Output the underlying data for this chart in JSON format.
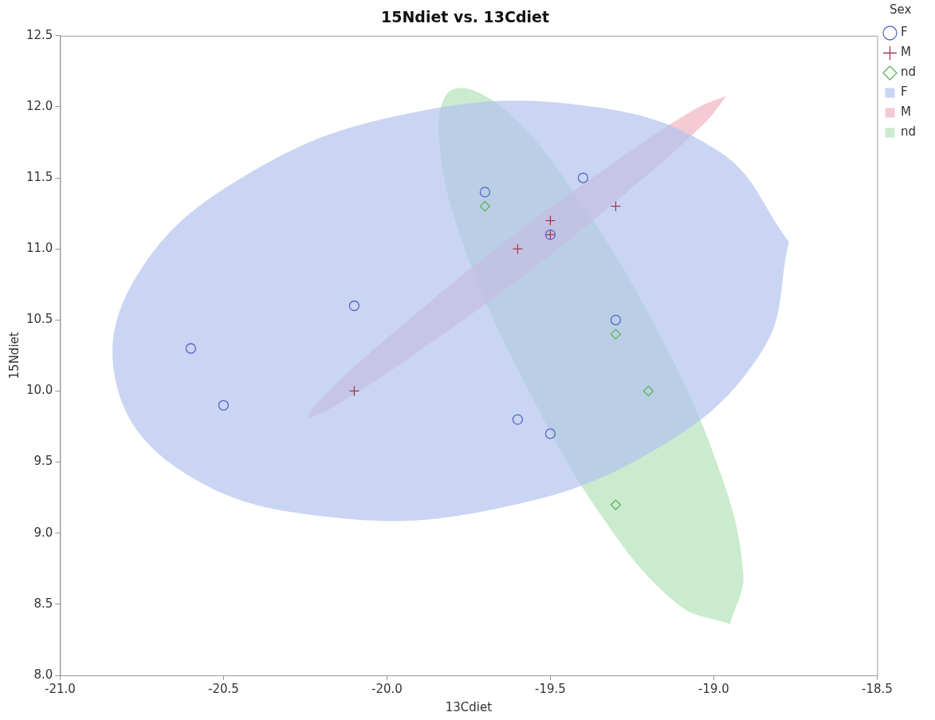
{
  "chart_data": {
    "type": "scatter",
    "title": "15Ndiet vs. 13Cdiet",
    "xlabel": "13Cdiet",
    "ylabel": "15Ndiet",
    "legend_title": "Sex",
    "legend": "top right",
    "xlim": [
      -21.0,
      -18.5
    ],
    "xticks": [
      {
        "value": -21,
        "label": "-21.0"
      },
      {
        "value": -20.5,
        "label": "-20.5"
      },
      {
        "value": -20,
        "label": "-20.0"
      },
      {
        "value": -19.5,
        "label": "-19.5"
      },
      {
        "value": -19,
        "label": "-19.0"
      },
      {
        "value": -18.5,
        "label": "-18.5"
      }
    ],
    "ylim": [
      8.0,
      12.5
    ],
    "yticks": [
      {
        "value": 8,
        "label": "8.0"
      },
      {
        "value": 8.5,
        "label": "8.5"
      },
      {
        "value": 9,
        "label": "9.0"
      },
      {
        "value": 9.5,
        "label": "9.5"
      },
      {
        "value": 10,
        "label": "10.0"
      },
      {
        "value": 10.5,
        "label": "10.5"
      },
      {
        "value": 11,
        "label": "11.0"
      },
      {
        "value": 11.5,
        "label": "11.5"
      },
      {
        "value": 12,
        "label": "12.0"
      },
      {
        "value": 12.5,
        "label": "12.5"
      }
    ],
    "series": [
      {
        "name": "F",
        "type": "scatter",
        "marker": "circle",
        "color": "#5566c4",
        "x": [
          -20.6,
          -20.5,
          -20.1,
          -19.7,
          -19.6,
          -19.5,
          -19.5,
          -19.4,
          -19.3
        ],
        "values": [
          10.3,
          9.9,
          10.6,
          11.4,
          9.8,
          9.7,
          11.1,
          11.5,
          10.5
        ]
      },
      {
        "name": "M",
        "type": "scatter",
        "marker": "cross",
        "color": "#a33a55",
        "x": [
          -20.1,
          -19.6,
          -19.5,
          -19.5,
          -19.3
        ],
        "values": [
          10.0,
          11.0,
          11.2,
          11.1,
          11.3
        ]
      },
      {
        "name": "nd",
        "type": "scatter",
        "marker": "diamond",
        "color": "#5fb35f",
        "x": [
          -19.7,
          -19.3,
          -19.2,
          -19.3
        ],
        "values": [
          11.3,
          10.4,
          10.0,
          9.2
        ]
      },
      {
        "name": "F",
        "type": "area",
        "color": "#b4c3f0",
        "x": [
          -18.77,
          -18.85,
          -19.17,
          -19.67,
          -20.2,
          -20.63,
          -20.83,
          -20.76,
          -20.43,
          -19.94,
          -19.4,
          -18.98,
          -18.77
        ],
        "values": [
          11.05,
          10.29,
          9.6,
          9.17,
          9.12,
          9.44,
          10.07,
          10.83,
          11.52,
          11.95,
          12.01,
          11.68,
          11.05
        ]
      },
      {
        "name": "M",
        "type": "area",
        "color": "#f0b4c0",
        "x": [
          -18.96,
          -19.03,
          -19.25,
          -19.56,
          -19.89,
          -20.14,
          -20.24,
          -20.17,
          -19.95,
          -19.64,
          -19.31,
          -19.06,
          -18.96
        ],
        "values": [
          12.08,
          11.88,
          11.43,
          10.85,
          10.3,
          9.92,
          9.82,
          10.02,
          10.47,
          11.05,
          11.6,
          11.98,
          12.08
        ]
      },
      {
        "name": "nd",
        "type": "area",
        "color": "#b4e2b8",
        "x": [
          -18.95,
          -18.91,
          -18.99,
          -19.18,
          -19.42,
          -19.64,
          -19.8,
          -19.84,
          -19.76,
          -19.57,
          -19.34,
          -19.11,
          -18.95
        ],
        "values": [
          8.36,
          8.72,
          9.49,
          10.46,
          11.37,
          11.98,
          12.12,
          11.76,
          10.99,
          10.02,
          9.11,
          8.5,
          8.36
        ]
      }
    ]
  }
}
